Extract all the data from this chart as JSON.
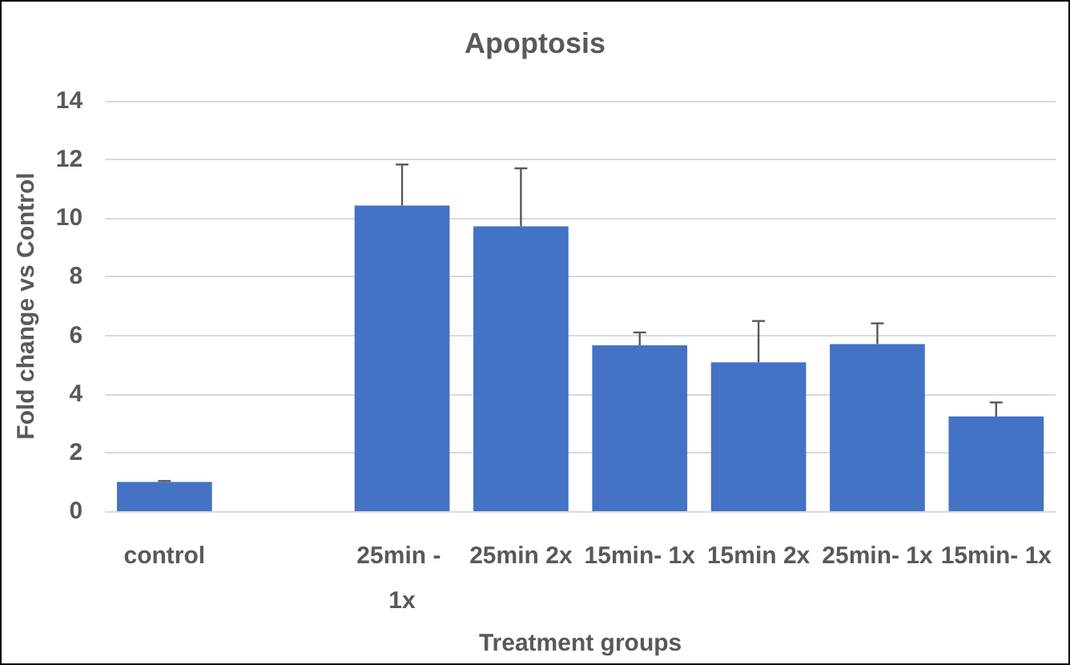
{
  "chart_data": {
    "type": "bar",
    "title": "Apoptosis",
    "xlabel": "Treatment groups",
    "ylabel": "Fold change vs Control",
    "categories": [
      "control",
      null,
      "25min - 1x",
      "25min 2x",
      "15min- 1x",
      "15min 2x",
      "25min- 1x",
      "15min- 1x"
    ],
    "values": [
      1.0,
      null,
      10.43,
      9.72,
      5.66,
      5.08,
      5.7,
      3.23
    ],
    "errors": [
      [
        1.0,
        1.03
      ],
      null,
      [
        10.43,
        11.83
      ],
      [
        9.72,
        11.7
      ],
      [
        5.66,
        6.1
      ],
      [
        5.08,
        6.49
      ],
      [
        5.7,
        6.41
      ],
      [
        3.23,
        3.71
      ]
    ],
    "color": "#4472c4",
    "ylim": [
      0,
      14
    ],
    "yticks": [
      0,
      2,
      4,
      6,
      8,
      10,
      12,
      14
    ],
    "grid": "y"
  }
}
